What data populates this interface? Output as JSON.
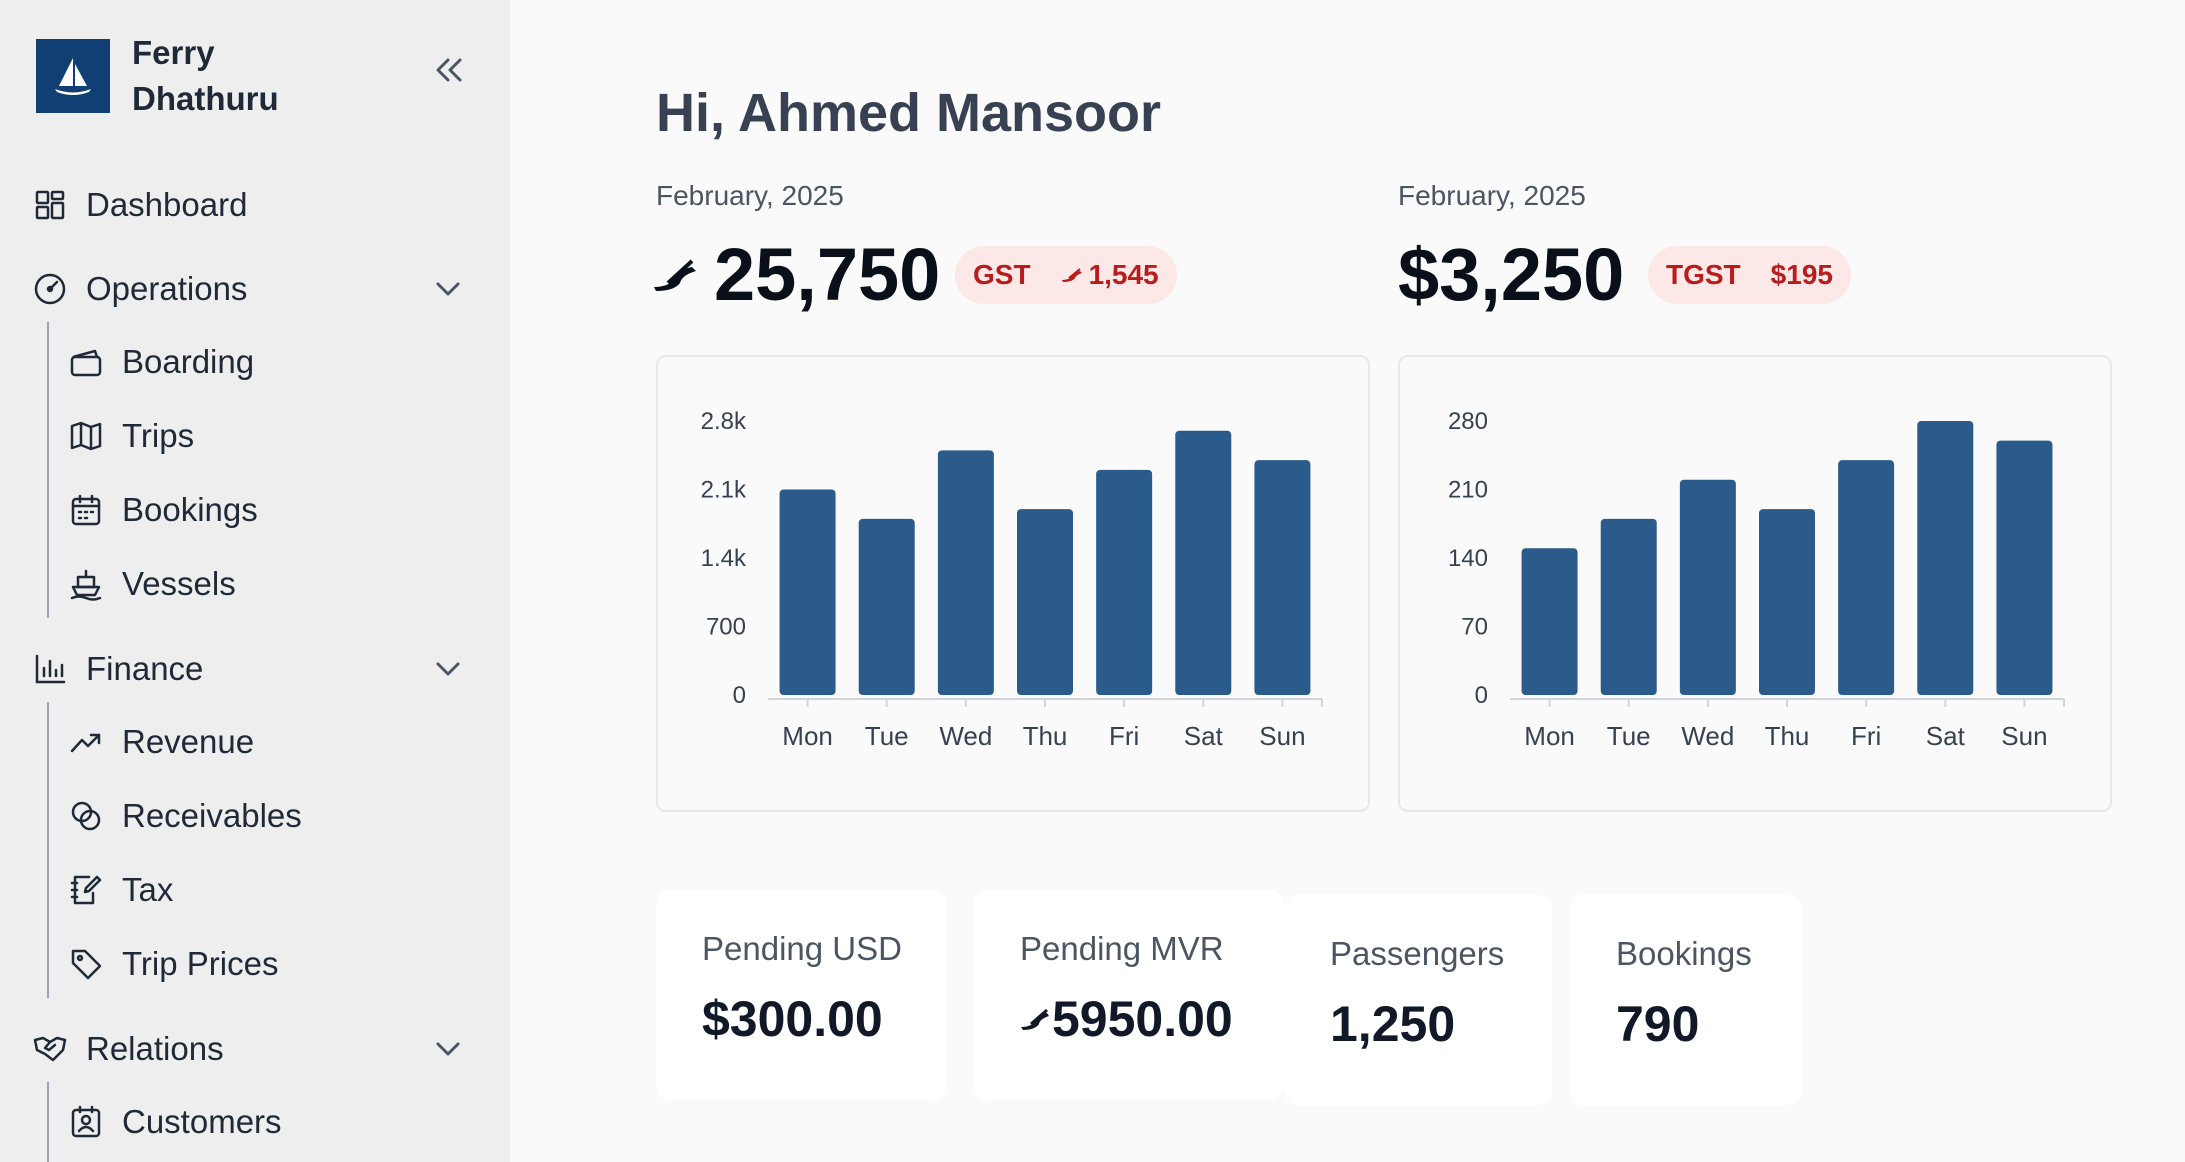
{
  "sidebar": {
    "brand": "Ferry Dhathuru",
    "items": [
      {
        "label": "Dashboard"
      },
      {
        "label": "Operations",
        "children": [
          {
            "label": "Boarding"
          },
          {
            "label": "Trips"
          },
          {
            "label": "Bookings"
          },
          {
            "label": "Vessels"
          }
        ]
      },
      {
        "label": "Finance",
        "children": [
          {
            "label": "Revenue"
          },
          {
            "label": "Receivables"
          },
          {
            "label": "Tax"
          },
          {
            "label": "Trip Prices"
          }
        ]
      },
      {
        "label": "Relations",
        "children": [
          {
            "label": "Customers"
          }
        ]
      }
    ]
  },
  "main": {
    "greeting": "Hi, Ahmed Mansoor",
    "mvr": {
      "period": "February, 2025",
      "amount": "25,750",
      "badge_label": "GST",
      "badge_value": "1,545"
    },
    "usd": {
      "period": "February, 2025",
      "amount": "$3,250",
      "badge_label": "TGST",
      "badge_value": "$195"
    },
    "stats": [
      {
        "label": "Pending USD",
        "value": "$300.00"
      },
      {
        "label": "Pending MVR",
        "value": "5950.00"
      },
      {
        "label": "Passengers",
        "value": "1,250"
      },
      {
        "label": "Bookings",
        "value": "790"
      }
    ]
  },
  "chart_data": [
    {
      "type": "bar",
      "categories": [
        "Mon",
        "Tue",
        "Wed",
        "Thu",
        "Fri",
        "Sat",
        "Sun"
      ],
      "values": [
        2100,
        1800,
        2500,
        1900,
        2300,
        2700,
        2400
      ],
      "yticks": [
        "0",
        "700",
        "1.4k",
        "2.1k",
        "2.8k"
      ],
      "ylim": [
        0,
        2800
      ],
      "color": "#2a5b8a"
    },
    {
      "type": "bar",
      "categories": [
        "Mon",
        "Tue",
        "Wed",
        "Thu",
        "Fri",
        "Sat",
        "Sun"
      ],
      "values": [
        150,
        180,
        220,
        190,
        240,
        280,
        260
      ],
      "yticks": [
        "0",
        "70",
        "140",
        "210",
        "280"
      ],
      "ylim": [
        0,
        280
      ],
      "color": "#2a5b8a"
    }
  ]
}
